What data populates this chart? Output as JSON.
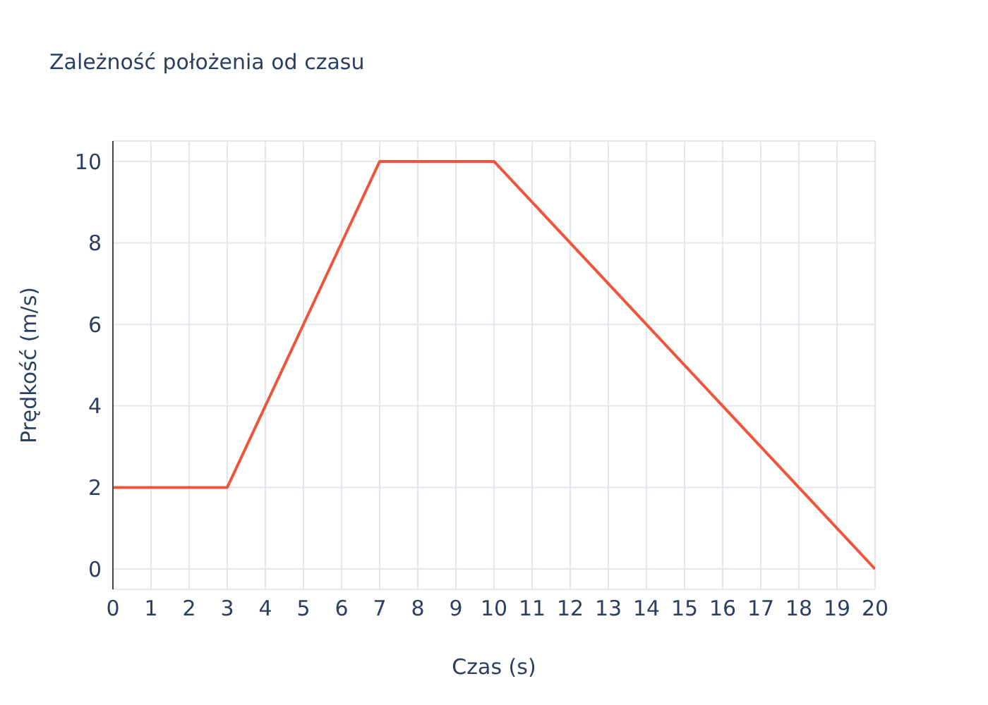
{
  "chart_data": {
    "type": "line",
    "title": "Zależność położenia od czasu",
    "xlabel": "Czas (s)",
    "ylabel": "Prędkość (m/s)",
    "x": [
      0,
      3,
      7,
      10,
      20
    ],
    "series": [
      {
        "color": "#ef553b",
        "values": [
          2,
          2,
          10,
          10,
          0
        ]
      }
    ],
    "xlim": [
      0,
      20
    ],
    "xticks": [
      0,
      1,
      2,
      3,
      4,
      5,
      6,
      7,
      8,
      9,
      10,
      11,
      12,
      13,
      14,
      15,
      16,
      17,
      18,
      19,
      20
    ],
    "ylim": [
      -0.5,
      10.5
    ],
    "yticks": [
      0,
      2,
      4,
      6,
      8,
      10
    ],
    "grid": true,
    "legend": false,
    "marker": "none",
    "line_style": "solid"
  }
}
